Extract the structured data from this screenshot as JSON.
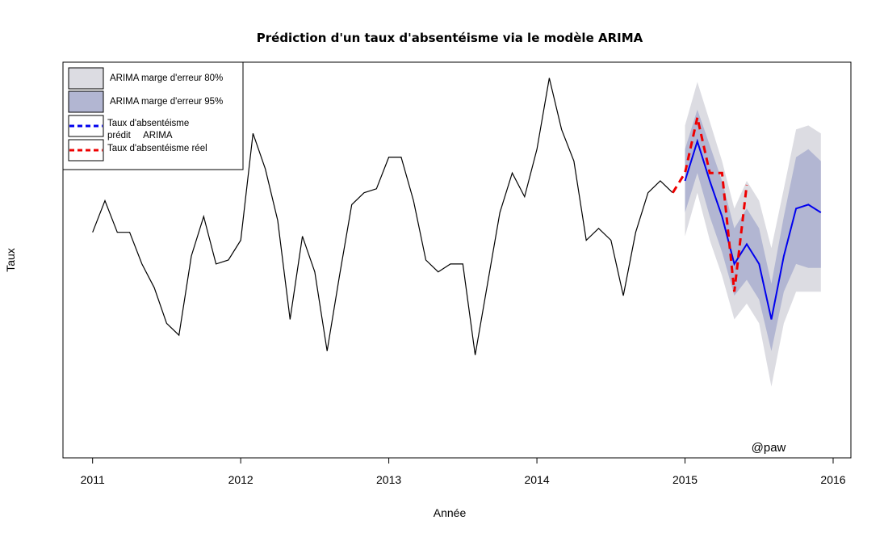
{
  "chart_data": {
    "type": "line",
    "title": "Prédiction d'un taux d'absentéisme via le modèle ARIMA",
    "xlabel": "Année",
    "ylabel": "Taux",
    "xlim": [
      2010.8,
      2016.12
    ],
    "ylim": [
      0,
      100
    ],
    "x_ticks": [
      "2011",
      "2012",
      "2013",
      "2014",
      "2015",
      "2016"
    ],
    "grid": false,
    "legend_position": "top-left",
    "watermark": "@paw",
    "colors": {
      "band80": "#dcdce2",
      "band95": "#b2b6d2",
      "predicted": "#0000ee",
      "actual": "#ee0000",
      "history": "#000000"
    },
    "legend": [
      {
        "kind": "fill",
        "color": "#dcdce2",
        "label": "ARIMA marge d'erreur 80%"
      },
      {
        "kind": "fill",
        "color": "#b2b6d2",
        "label": "ARIMA marge d'erreur 95%"
      },
      {
        "kind": "dash",
        "color": "#0000ee",
        "label_line1": "Taux d'absentéisme",
        "label_line2": "prédit     ARIMA"
      },
      {
        "kind": "dash",
        "color": "#ee0000",
        "label": "Taux d'absentéisme réel"
      }
    ],
    "history": {
      "start": 2011,
      "step": 0.0833333,
      "values": [
        57,
        65,
        57,
        57,
        49,
        43,
        34,
        31,
        51,
        61,
        49,
        50,
        55,
        82,
        73,
        60,
        35,
        56,
        47,
        27,
        46,
        64,
        67,
        68,
        76,
        76,
        65,
        50,
        47,
        49,
        49,
        26,
        44,
        62,
        72,
        66,
        78,
        96,
        83,
        75,
        55,
        58,
        55,
        41,
        57,
        67,
        70,
        67
      ]
    },
    "actual": [
      {
        "x": 2014.917,
        "y": 67
      },
      {
        "x": 2015.0,
        "y": 72
      },
      {
        "x": 2015.083,
        "y": 86
      },
      {
        "x": 2015.167,
        "y": 72
      },
      {
        "x": 2015.25,
        "y": 72
      },
      {
        "x": 2015.333,
        "y": 42
      },
      {
        "x": 2015.417,
        "y": 69
      }
    ],
    "forecast": {
      "x": [
        2015.0,
        2015.083,
        2015.167,
        2015.25,
        2015.333,
        2015.417,
        2015.5,
        2015.583,
        2015.667,
        2015.75,
        2015.833,
        2015.917
      ],
      "mean": [
        70,
        80,
        70,
        61,
        49,
        54,
        49,
        35,
        51,
        63,
        64,
        62
      ],
      "lo80": [
        62,
        72,
        61,
        52,
        41,
        45,
        40,
        27,
        42,
        49,
        48,
        48
      ],
      "hi80": [
        78,
        88,
        79,
        70,
        58,
        63,
        58,
        44,
        61,
        76,
        78,
        75
      ],
      "lo95": [
        56,
        67,
        55,
        46,
        35,
        39,
        34,
        18,
        34,
        42,
        42,
        42
      ],
      "hi95": [
        84,
        95,
        85,
        75,
        63,
        70,
        65,
        53,
        68,
        83,
        84,
        82
      ]
    }
  }
}
